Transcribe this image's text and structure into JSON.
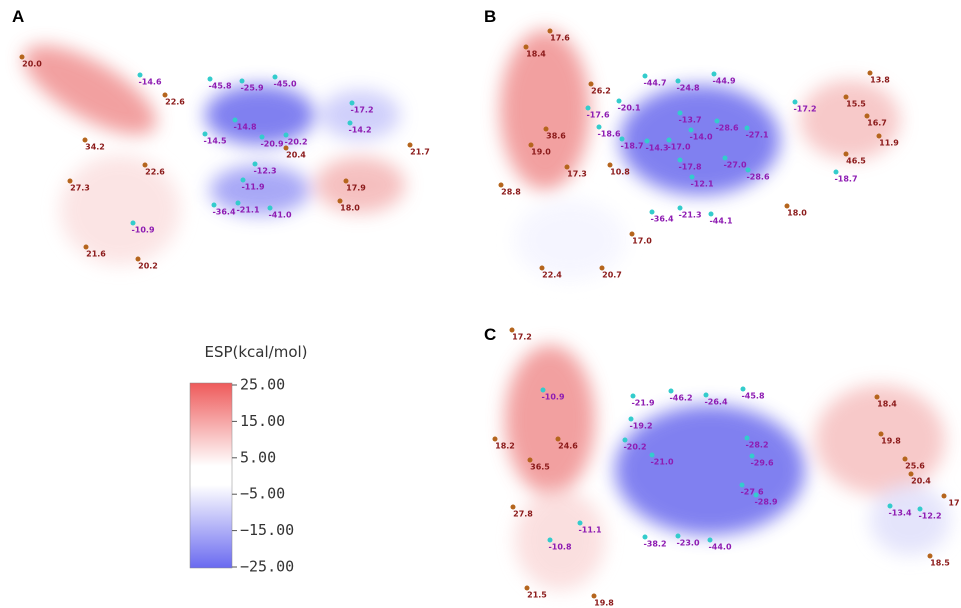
{
  "panels": [
    {
      "letter": "A",
      "labels": [
        "20.0",
        "-14.6",
        "22.6",
        "-45.8",
        "-25.9",
        "-45.0",
        "-17.2",
        "-14.2",
        "21.7",
        "34.2",
        "-14.8",
        "-14.5",
        "-20.9",
        "-20.2",
        "20.4",
        "22.6",
        "-12.3",
        "27.3",
        "-11.9",
        "17.9",
        "18.0",
        "-36.4",
        "-21.1",
        "-41.0",
        "-10.9",
        "21.6",
        "20.2"
      ]
    },
    {
      "letter": "B",
      "labels": [
        "17.6",
        "18.4",
        "13.8",
        "26.2",
        "-44.7",
        "-24.8",
        "-44.9",
        "-20.1",
        "-17.2",
        "15.5",
        "-17.6",
        "-13.7",
        "-28.6",
        "-27.1",
        "16.7",
        "38.6",
        "-18.6",
        "-14.0",
        "11.9",
        "19.0",
        "-18.7",
        "-14.3",
        "-17.0",
        "46.5",
        "-18.7",
        "17.3",
        "10.8",
        "-17.8",
        "-27.0",
        "-28.6",
        "-12.1",
        "28.8",
        "18.0",
        "-36.4",
        "-21.3",
        "-44.1",
        "17.0",
        "22.4",
        "20.7"
      ]
    },
    {
      "letter": "C",
      "labels": [
        "17.2",
        "-10.9",
        "-21.9",
        "-46.2",
        "-26.4",
        "-45.8",
        "18.4",
        "-19.2",
        "18.2",
        "24.6",
        "-20.2",
        "-28.2",
        "19.8",
        "-21.0",
        "-29.6",
        "36.5",
        "25.6",
        "20.4",
        "17",
        "-27.6",
        "-28.9",
        "27.8",
        "-13.4",
        "-12.2",
        "-38.2",
        "-23.0",
        "-44.0",
        "-11.1",
        "-10.8",
        "18.5",
        "21.5",
        "19.8"
      ]
    }
  ],
  "legend": {
    "title": "ESP(kcal/mol)",
    "ticks": [
      "25.00",
      "15.00",
      "5.00",
      "−5.00",
      "−15.00",
      "−25.00"
    ]
  }
}
